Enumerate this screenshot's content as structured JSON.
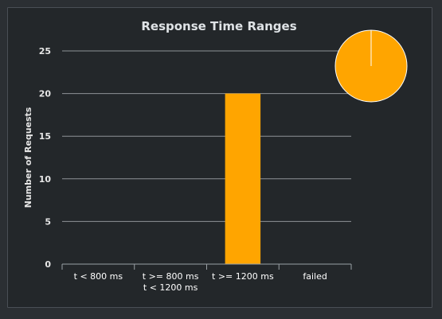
{
  "chart_data": {
    "type": "bar",
    "title": "Response Time Ranges",
    "xlabel": "",
    "ylabel": "Number of Requests",
    "categories": [
      [
        "t < 800 ms"
      ],
      [
        "t >= 800 ms",
        "t < 1200 ms"
      ],
      [
        "t >= 1200 ms"
      ],
      [
        "failed"
      ]
    ],
    "values": [
      0,
      0,
      20,
      0
    ],
    "ylim": [
      0,
      25
    ],
    "yticks": [
      "0",
      "5",
      "10",
      "15",
      "20",
      "25"
    ],
    "grid": true,
    "bar_color": "#ffa500",
    "pie": {
      "type": "pie",
      "slices": [
        {
          "category": "t < 800 ms",
          "value": 0
        },
        {
          "category": "t >= 800 ms t < 1200 ms",
          "value": 0
        },
        {
          "category": "t >= 1200 ms",
          "value": 20
        },
        {
          "category": "failed",
          "value": 0
        }
      ],
      "color": "#ffa500",
      "edge_color": "#ffffff"
    }
  },
  "colors": {
    "page_background": "#2b2f33",
    "panel_background": "#23272a",
    "panel_border": "#4a4f55",
    "grid": "#8e9397",
    "text": "#e6e6e6"
  }
}
